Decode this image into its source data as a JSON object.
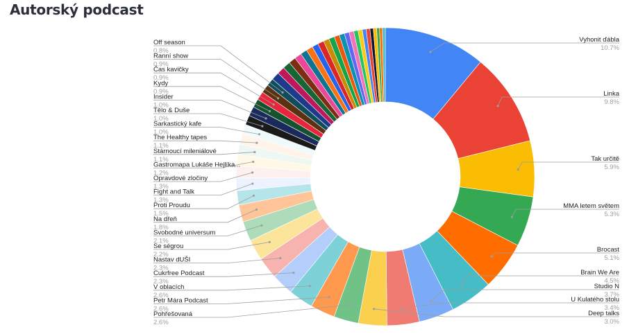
{
  "page": {
    "title": "Autorský podcast"
  },
  "chart_data": {
    "type": "pie",
    "donut": true,
    "title": "",
    "slices": [
      {
        "label": "Vyhonit ďábla",
        "pct_label": "10.7%",
        "value": 10.7,
        "color": "#4285f4"
      },
      {
        "label": "Linka",
        "pct_label": "9.8%",
        "value": 9.8,
        "color": "#ea4335"
      },
      {
        "label": "Tak určitě",
        "pct_label": "5.9%",
        "value": 5.9,
        "color": "#fbbc04"
      },
      {
        "label": "MMA letem světem",
        "pct_label": "5.3%",
        "value": 5.3,
        "color": "#34a853"
      },
      {
        "label": "Brocast",
        "pct_label": "5.1%",
        "value": 5.1,
        "color": "#ff6d01"
      },
      {
        "label": "Brain We Are",
        "pct_label": "4.5%",
        "value": 4.5,
        "color": "#46bdc6"
      },
      {
        "label": "Studio N",
        "pct_label": "3.7%",
        "value": 3.7,
        "color": "#7baaf7"
      },
      {
        "label": "U Kulatého stolu",
        "pct_label": "3.4%",
        "value": 3.4,
        "color": "#f07b72"
      },
      {
        "label": "Deep talks",
        "pct_label": "3.0%",
        "value": 3.0,
        "color": "#fcd04f"
      },
      {
        "label": "Pohřešovaná",
        "pct_label": "2.6%",
        "value": 2.6,
        "color": "#71c287"
      },
      {
        "label": "Petr Mára Podcast",
        "pct_label": "2.6%",
        "value": 2.6,
        "color": "#ff994d"
      },
      {
        "label": "V oblacích",
        "pct_label": "2.6%",
        "value": 2.6,
        "color": "#7ed1d7"
      },
      {
        "label": "Cukrfree Podcast",
        "pct_label": "2.3%",
        "value": 2.3,
        "color": "#b3cefb"
      },
      {
        "label": "Nastav dUŠI",
        "pct_label": "2.3%",
        "value": 2.3,
        "color": "#f7b4ae"
      },
      {
        "label": "Se ségrou",
        "pct_label": "2.2%",
        "value": 2.2,
        "color": "#fde49b"
      },
      {
        "label": "Svobodné universum",
        "pct_label": "2.1%",
        "value": 2.1,
        "color": "#aedcba"
      },
      {
        "label": "Na dřeň",
        "pct_label": "1.8%",
        "value": 1.8,
        "color": "#ffc599"
      },
      {
        "label": "Proti Proudu",
        "pct_label": "1.5%",
        "value": 1.5,
        "color": "#b5e5e8"
      },
      {
        "label": "Fight and Talk",
        "pct_label": "1.3%",
        "value": 1.3,
        "color": "#ecf3fe"
      },
      {
        "label": "Opravdové zločiny",
        "pct_label": "1.3%",
        "value": 1.3,
        "color": "#fdf0ef"
      },
      {
        "label": "Gastromapa Lukáše Hejlíka...",
        "pct_label": "1.2%",
        "value": 1.2,
        "color": "#fff8e6"
      },
      {
        "label": "Stárnoucí mileniálové",
        "pct_label": "1.1%",
        "value": 1.1,
        "color": "#eef7f1"
      },
      {
        "label": "The Healthy tapes",
        "pct_label": "1.1%",
        "value": 1.1,
        "color": "#fff3ea"
      },
      {
        "label": "Sarkastický kafe",
        "pct_label": "1.0%",
        "value": 1.0,
        "color": "#effafb"
      },
      {
        "label": "Tělo & Duše",
        "pct_label": "1.0%",
        "value": 1.0,
        "color": "#1a1a1a"
      },
      {
        "label": "Insider",
        "pct_label": "1.0%",
        "value": 1.0,
        "color": "#1b2a5c"
      },
      {
        "label": "Kydy",
        "pct_label": "0.9%",
        "value": 0.9,
        "color": "#14532d"
      },
      {
        "label": "Čas kavičky",
        "pct_label": "0.9%",
        "value": 0.9,
        "color": "#e8253c"
      },
      {
        "label": "Ranní show",
        "pct_label": "0.9%",
        "value": 0.9,
        "color": "#5a3210"
      },
      {
        "label": "Off season",
        "pct_label": "0.8%",
        "value": 0.8,
        "color": "#0f4c5c"
      }
    ],
    "other_slices": [
      {
        "value": 0.85,
        "color": "#1e3a8a"
      },
      {
        "value": 0.8,
        "color": "#be185d"
      },
      {
        "value": 0.8,
        "color": "#166534"
      },
      {
        "value": 0.75,
        "color": "#7c2d12"
      },
      {
        "value": 0.75,
        "color": "#ec4899"
      },
      {
        "value": 0.7,
        "color": "#0e7490"
      },
      {
        "value": 0.7,
        "color": "#f97316"
      },
      {
        "value": 0.65,
        "color": "#2563eb"
      },
      {
        "value": 0.65,
        "color": "#dc2626"
      },
      {
        "value": 0.6,
        "color": "#ca8a04"
      },
      {
        "value": 0.6,
        "color": "#16a34a"
      },
      {
        "value": 0.55,
        "color": "#ea580c"
      },
      {
        "value": 0.55,
        "color": "#0891b2"
      },
      {
        "value": 0.5,
        "color": "#6366f1"
      },
      {
        "value": 0.5,
        "color": "#f472b6"
      },
      {
        "value": 0.45,
        "color": "#22c55e"
      },
      {
        "value": 0.45,
        "color": "#facc15"
      },
      {
        "value": 0.4,
        "color": "#4285f4"
      },
      {
        "value": 0.4,
        "color": "#ea4335"
      },
      {
        "value": 0.35,
        "color": "#111827"
      },
      {
        "value": 0.35,
        "color": "#fbbc04"
      },
      {
        "value": 0.3,
        "color": "#34a853"
      },
      {
        "value": 0.3,
        "color": "#ff6d01"
      },
      {
        "value": 0.3,
        "color": "#46bdc6"
      }
    ],
    "legend": "labels with leader lines"
  }
}
